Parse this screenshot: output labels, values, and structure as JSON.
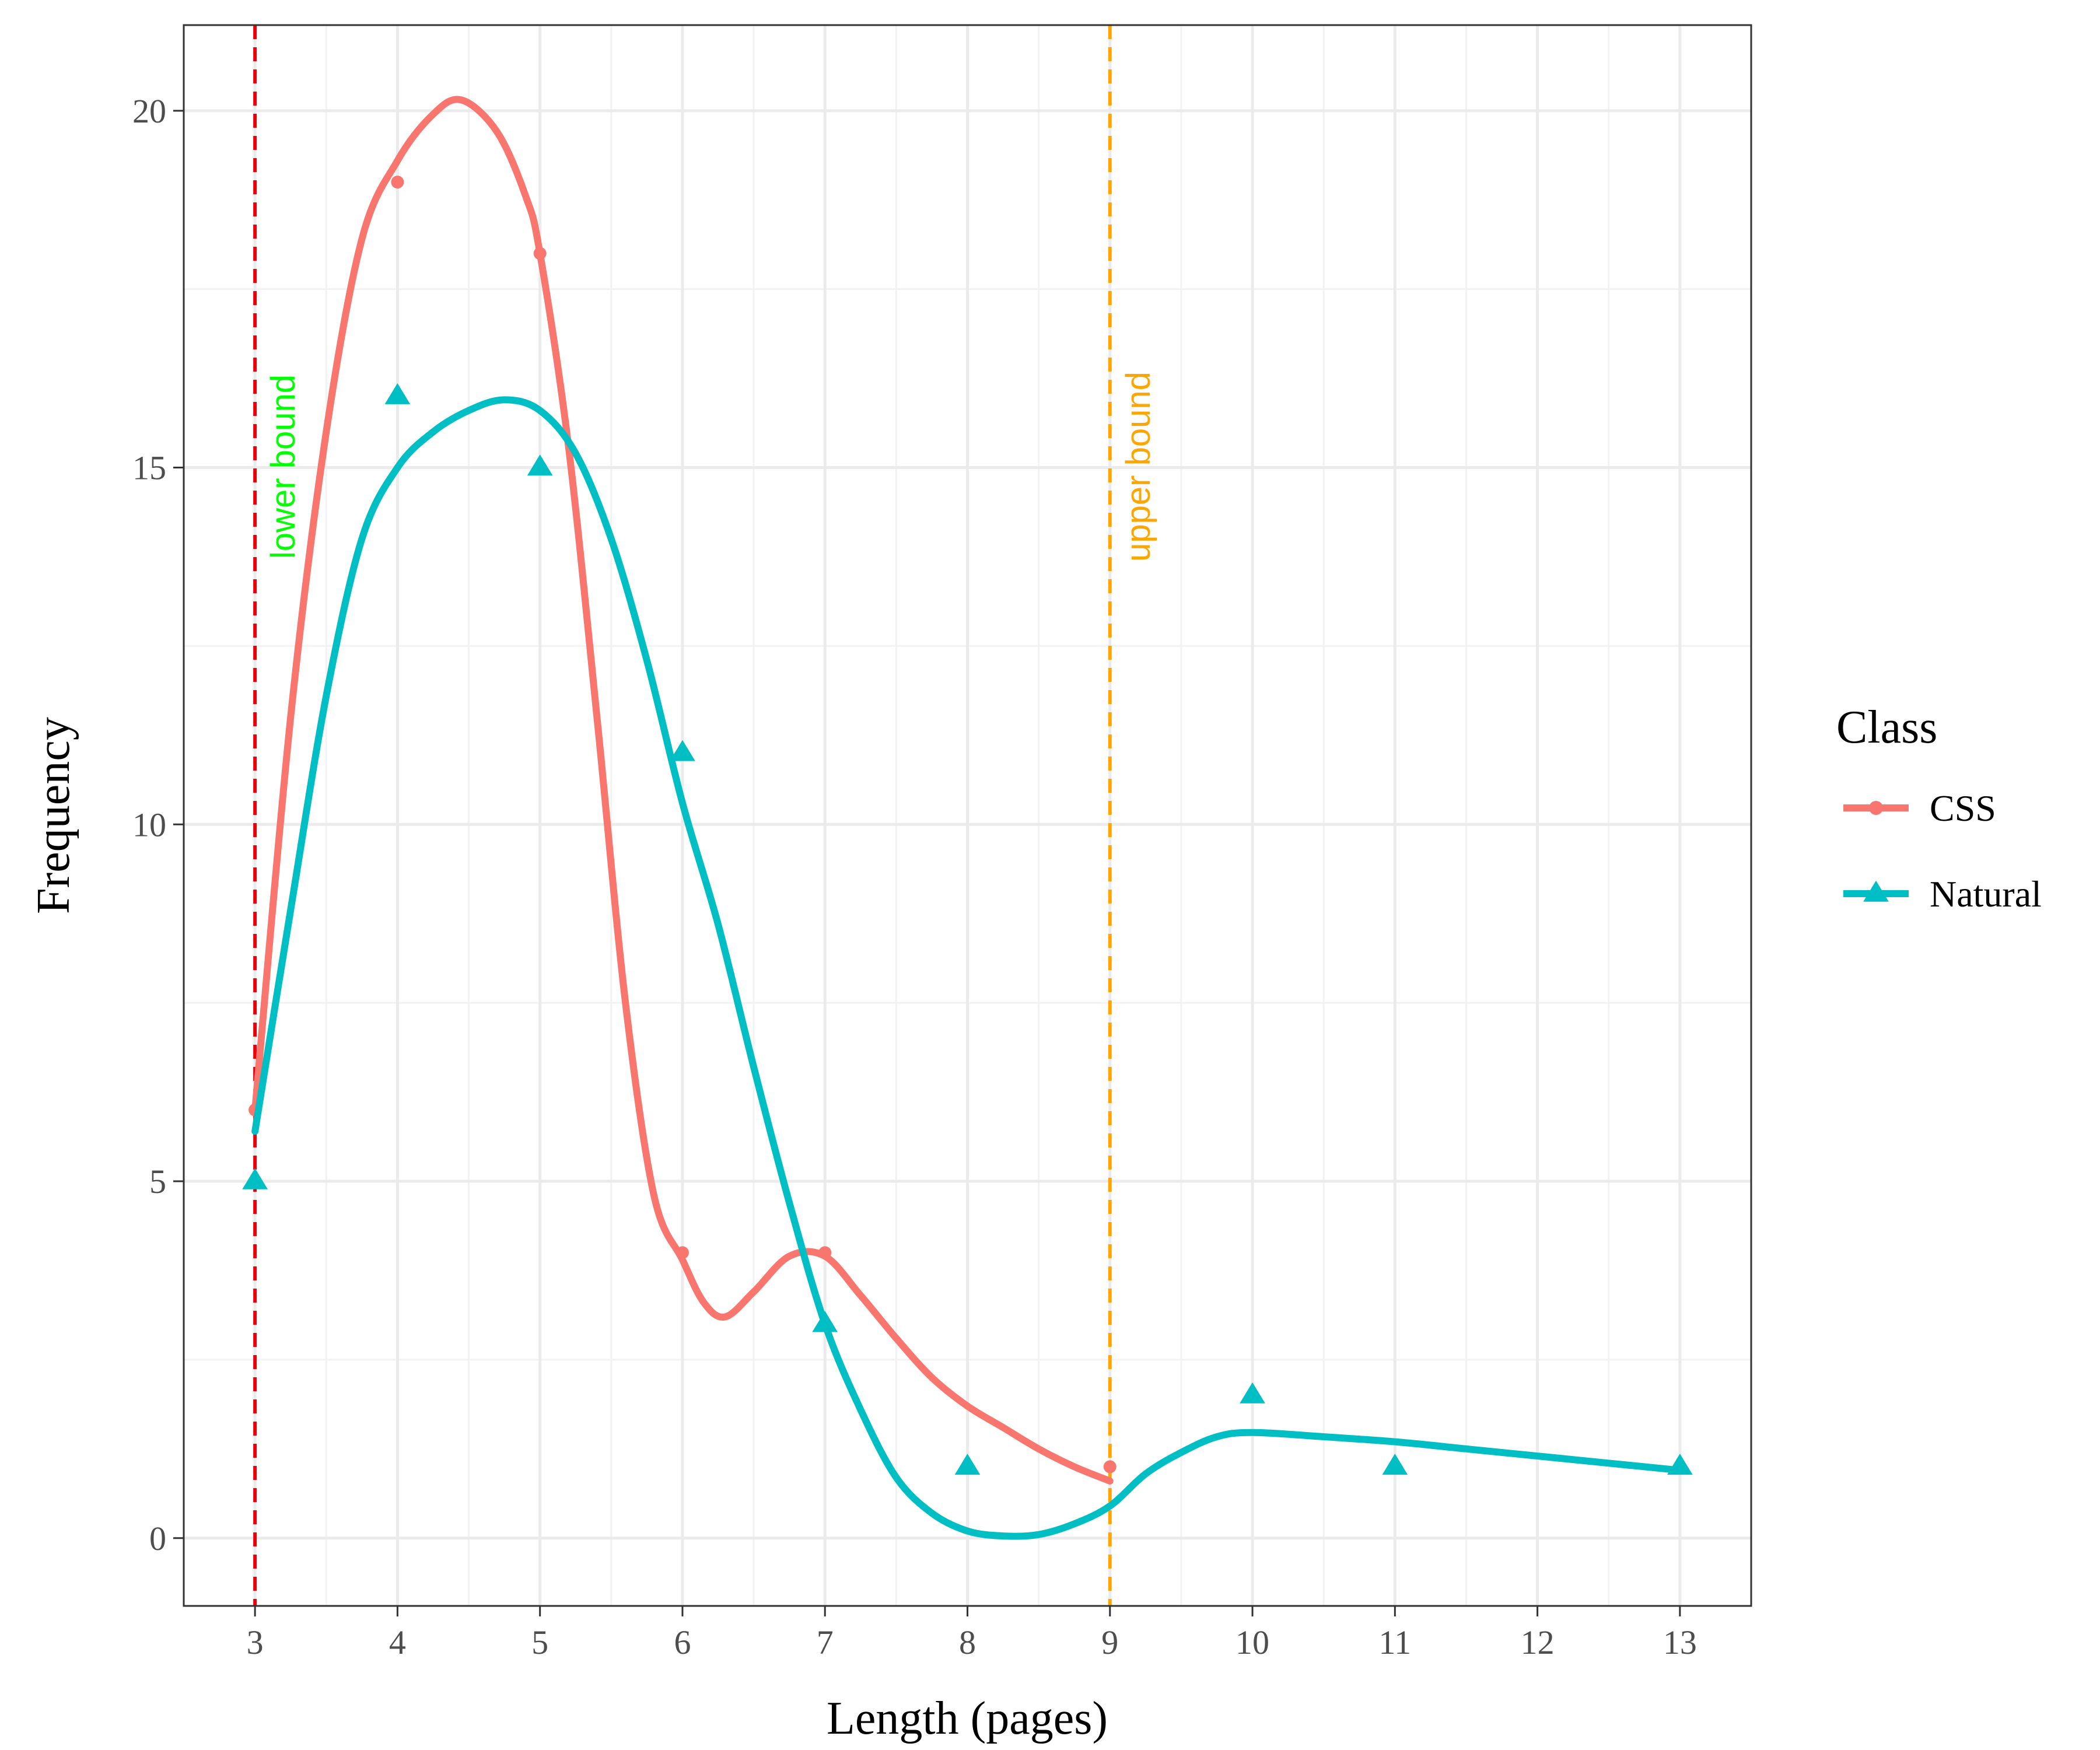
{
  "chart_data": {
    "type": "line",
    "xlabel": "Length (pages)",
    "ylabel": "Frequency",
    "xlim": [
      2.5,
      13.5
    ],
    "ylim": [
      -0.95,
      21.2
    ],
    "x_ticks": [
      "3",
      "4",
      "5",
      "6",
      "7",
      "8",
      "9",
      "10",
      "11",
      "12",
      "13"
    ],
    "y_ticks": [
      "0",
      "5",
      "10",
      "15",
      "20"
    ],
    "grid": true,
    "legend": {
      "title": "Class",
      "position": "right"
    },
    "series": [
      {
        "name": "CSS",
        "color": "#F8766D",
        "marker": "circle",
        "points": [
          [
            3,
            6
          ],
          [
            4,
            19
          ],
          [
            5,
            18
          ],
          [
            6,
            4
          ],
          [
            7,
            4
          ],
          [
            9,
            1
          ]
        ],
        "smooth": [
          [
            3,
            6
          ],
          [
            3.25,
            11.5
          ],
          [
            3.5,
            15.5
          ],
          [
            3.75,
            18.2
          ],
          [
            4,
            19.3
          ],
          [
            4.25,
            19.95
          ],
          [
            4.45,
            20.15
          ],
          [
            4.7,
            19.7
          ],
          [
            4.9,
            18.8
          ],
          [
            5,
            18.0
          ],
          [
            5.2,
            15.3
          ],
          [
            5.4,
            11.5
          ],
          [
            5.6,
            7.5
          ],
          [
            5.8,
            4.8
          ],
          [
            6,
            3.9
          ],
          [
            6.15,
            3.3
          ],
          [
            6.3,
            3.1
          ],
          [
            6.5,
            3.45
          ],
          [
            6.75,
            3.95
          ],
          [
            7,
            3.95
          ],
          [
            7.25,
            3.4
          ],
          [
            7.5,
            2.8
          ],
          [
            7.75,
            2.25
          ],
          [
            8,
            1.85
          ],
          [
            8.25,
            1.55
          ],
          [
            8.5,
            1.25
          ],
          [
            8.75,
            1.0
          ],
          [
            9,
            0.8
          ]
        ]
      },
      {
        "name": "Natural",
        "color": "#00BFC4",
        "marker": "triangle",
        "points": [
          [
            3,
            5
          ],
          [
            4,
            16
          ],
          [
            5,
            15
          ],
          [
            6,
            11
          ],
          [
            7,
            3
          ],
          [
            8,
            1
          ],
          [
            10,
            2
          ],
          [
            11,
            1
          ],
          [
            13,
            1
          ]
        ],
        "smooth": [
          [
            3,
            5.7
          ],
          [
            3.25,
            8.8
          ],
          [
            3.5,
            11.8
          ],
          [
            3.75,
            14.0
          ],
          [
            4,
            15.0
          ],
          [
            4.25,
            15.5
          ],
          [
            4.5,
            15.8
          ],
          [
            4.75,
            15.95
          ],
          [
            5,
            15.8
          ],
          [
            5.25,
            15.2
          ],
          [
            5.5,
            14.0
          ],
          [
            5.75,
            12.3
          ],
          [
            6,
            10.3
          ],
          [
            6.25,
            8.6
          ],
          [
            6.5,
            6.6
          ],
          [
            6.75,
            4.7
          ],
          [
            7,
            3.0
          ],
          [
            7.25,
            1.8
          ],
          [
            7.5,
            0.85
          ],
          [
            7.75,
            0.35
          ],
          [
            8,
            0.1
          ],
          [
            8.25,
            0.03
          ],
          [
            8.5,
            0.05
          ],
          [
            8.75,
            0.2
          ],
          [
            9,
            0.45
          ],
          [
            9.25,
            0.9
          ],
          [
            9.5,
            1.2
          ],
          [
            9.75,
            1.42
          ],
          [
            10,
            1.48
          ],
          [
            10.5,
            1.42
          ],
          [
            11,
            1.35
          ],
          [
            11.5,
            1.25
          ],
          [
            12,
            1.15
          ],
          [
            12.5,
            1.05
          ],
          [
            13,
            0.95
          ]
        ]
      }
    ],
    "annotations": [
      {
        "x": 3,
        "label": "lower bound",
        "line_color": "#E8000B",
        "text_color": "#00FF00",
        "style": "dashed"
      },
      {
        "x": 9,
        "label": "upper bound",
        "line_color": "#FFA500",
        "text_color": "#FFA500",
        "style": "dashed"
      }
    ]
  }
}
